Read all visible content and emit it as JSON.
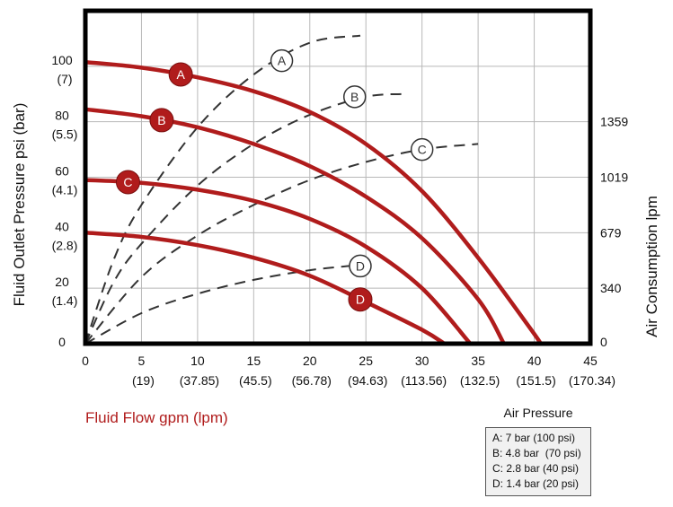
{
  "chart_data": {
    "type": "line",
    "xlabel": "Fluid Flow gpm (lpm)",
    "ylabel": "Fluid Outlet Pressure psi (bar)",
    "y2label": "Air Consumption lpm",
    "xlim": [
      0,
      45
    ],
    "ylim": [
      0,
      120
    ],
    "x_ticks": [
      {
        "v": 0,
        "main": "0",
        "sub": ""
      },
      {
        "v": 5,
        "main": "5",
        "sub": "(19)"
      },
      {
        "v": 10,
        "main": "10",
        "sub": "(37.85)"
      },
      {
        "v": 15,
        "main": "15",
        "sub": "(45.5)"
      },
      {
        "v": 20,
        "main": "20",
        "sub": "(56.78)"
      },
      {
        "v": 25,
        "main": "25",
        "sub": "(94.63)"
      },
      {
        "v": 30,
        "main": "30",
        "sub": "(113.56)"
      },
      {
        "v": 35,
        "main": "35",
        "sub": "(132.5)"
      },
      {
        "v": 40,
        "main": "40",
        "sub": "(151.5)"
      },
      {
        "v": 45,
        "main": "45",
        "sub": "(170.34)"
      }
    ],
    "y_ticks": [
      {
        "v": 0,
        "main": "0",
        "sub": ""
      },
      {
        "v": 20,
        "main": "20",
        "sub": "(1.4)"
      },
      {
        "v": 40,
        "main": "40",
        "sub": "(2.8)"
      },
      {
        "v": 60,
        "main": "60",
        "sub": "(4.1)"
      },
      {
        "v": 80,
        "main": "80",
        "sub": "(5.5)"
      },
      {
        "v": 100,
        "main": "100",
        "sub": "(7)"
      }
    ],
    "y2_ticks": [
      {
        "v": 0,
        "label": "0"
      },
      {
        "v": 20,
        "label": "340"
      },
      {
        "v": 40,
        "label": "679"
      },
      {
        "v": 60,
        "label": "1019"
      },
      {
        "v": 80,
        "label": "1359"
      }
    ],
    "grid": true,
    "legend_title": "Air Pressure",
    "legend_entries": [
      "A: 7 bar (100 psi)",
      "B: 4.8 bar  (70 psi)",
      "C: 2.8 bar (40 psi)",
      "D: 1.4 bar (20 psi)"
    ],
    "fluid_series": [
      {
        "name": "A",
        "color": "#b01c1c",
        "x": [
          0,
          5,
          10,
          15,
          20,
          25,
          30,
          35,
          40,
          40.5
        ],
        "y": [
          101.5,
          99.5,
          96,
          91,
          83.5,
          72,
          55,
          31,
          3.5,
          0
        ],
        "badge_x": 8.5
      },
      {
        "name": "B",
        "color": "#b01c1c",
        "x": [
          0,
          5,
          10,
          15,
          20,
          25,
          30,
          35,
          37.3
        ],
        "y": [
          84.5,
          82,
          78,
          72,
          64,
          53,
          38,
          16,
          0
        ],
        "badge_x": 6.8
      },
      {
        "name": "C",
        "color": "#b01c1c",
        "x": [
          0,
          5,
          10,
          15,
          20,
          25,
          30,
          34.3
        ],
        "y": [
          59,
          58,
          55.5,
          51.5,
          45,
          35,
          20,
          0
        ],
        "badge_x": 3.8
      },
      {
        "name": "D",
        "color": "#b01c1c",
        "x": [
          0,
          5,
          10,
          15,
          20,
          25,
          30,
          32
        ],
        "y": [
          40,
          38.5,
          35.5,
          31,
          24.5,
          15,
          5,
          0
        ],
        "badge_x": 24.5
      }
    ],
    "air_series": [
      {
        "name": "A",
        "x": [
          0,
          2.5,
          5,
          10,
          15,
          20,
          24.5
        ],
        "y": [
          0,
          30,
          50,
          78,
          97,
          108.5,
          111
        ],
        "badge": [
          17.5,
          102
        ]
      },
      {
        "name": "B",
        "x": [
          0,
          2.5,
          5,
          10,
          15,
          20,
          25,
          28.5
        ],
        "y": [
          0,
          22,
          36,
          57,
          72,
          82.5,
          89,
          90
        ],
        "badge": [
          24,
          89
        ]
      },
      {
        "name": "C",
        "x": [
          0,
          5,
          10,
          15,
          20,
          25,
          30,
          35
        ],
        "y": [
          0,
          24,
          39,
          50,
          59,
          65.5,
          70,
          72
        ],
        "badge": [
          30,
          70
        ]
      },
      {
        "name": "D",
        "x": [
          0,
          5,
          10,
          15,
          20,
          23.5
        ],
        "y": [
          0,
          11,
          18,
          23,
          26.5,
          28
        ],
        "badge": [
          24.5,
          28
        ]
      }
    ]
  }
}
